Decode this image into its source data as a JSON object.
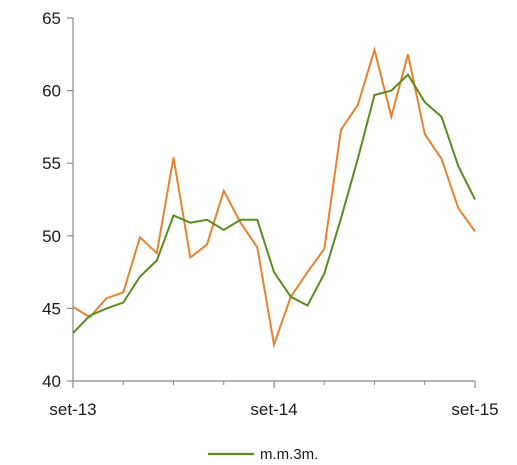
{
  "chart_data": {
    "type": "line",
    "x_tick_labels": [
      "set-13",
      "set-14",
      "set-15"
    ],
    "y_ticks": [
      40,
      45,
      50,
      55,
      60,
      65
    ],
    "ylim": [
      40,
      65
    ],
    "x_count": 25,
    "grid": false,
    "legend_position": "bottom-center",
    "series": [
      {
        "name": "",
        "color": "#e8822e",
        "values": [
          45.1,
          44.4,
          45.7,
          46.1,
          49.9,
          48.8,
          55.4,
          48.5,
          49.4,
          53.1,
          50.9,
          49.2,
          42.5,
          45.8,
          47.5,
          49.1,
          57.3,
          59.0,
          62.8,
          58.2,
          62.5,
          57.0,
          55.3,
          51.9,
          50.3
        ]
      },
      {
        "name": "m.m.3m.",
        "color": "#5b8c24",
        "values": [
          43.3,
          44.5,
          45.0,
          45.4,
          47.2,
          48.3,
          51.4,
          50.9,
          51.1,
          50.4,
          51.1,
          51.1,
          47.5,
          45.8,
          45.2,
          47.4,
          51.2,
          55.3,
          59.7,
          60.0,
          61.1,
          59.2,
          58.2,
          54.8,
          52.5
        ]
      }
    ]
  }
}
